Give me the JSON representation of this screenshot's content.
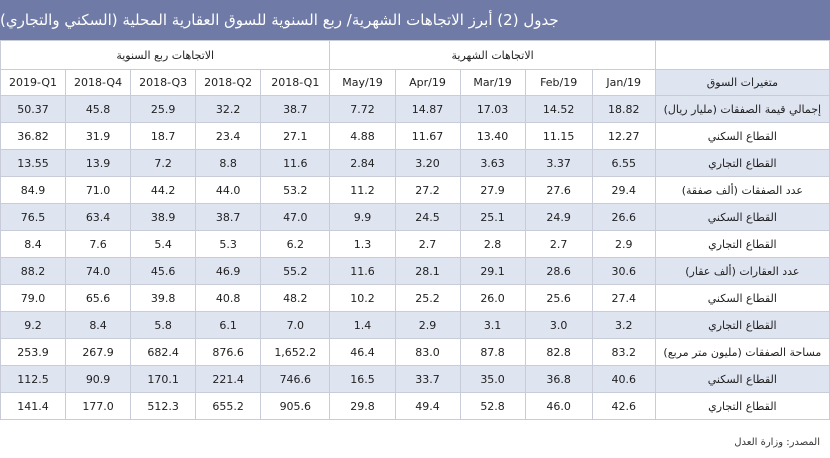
{
  "title": "جدول (2) أبرز الاتجاهات الشهرية/ ربع السنوية للسوق العقارية المحلية (السكني والتجاري)",
  "groups": {
    "quarterly": "الاتجاهات ربع السنوية",
    "monthly": "الاتجاهات الشهرية"
  },
  "headers": {
    "quarters": [
      "2019-Q1",
      "2018-Q4",
      "2018-Q3",
      "2018-Q2",
      "2018-Q1"
    ],
    "months": [
      "May/19",
      "Apr/19",
      "Mar/19",
      "Feb/19",
      "Jan/19"
    ],
    "variable": "متغيرات السوق"
  },
  "rows": [
    {
      "label": "إجمالي قيمة الصفقات (مليار ريال)",
      "quarters": [
        "50.37",
        "45.8",
        "25.9",
        "32.2",
        "38.7"
      ],
      "months": [
        "7.72",
        "14.87",
        "17.03",
        "14.52",
        "18.82"
      ]
    },
    {
      "label": "القطاع السكني",
      "quarters": [
        "36.82",
        "31.9",
        "18.7",
        "23.4",
        "27.1"
      ],
      "months": [
        "4.88",
        "11.67",
        "13.40",
        "11.15",
        "12.27"
      ]
    },
    {
      "label": "القطاع التجاري",
      "quarters": [
        "13.55",
        "13.9",
        "7.2",
        "8.8",
        "11.6"
      ],
      "months": [
        "2.84",
        "3.20",
        "3.63",
        "3.37",
        "6.55"
      ]
    },
    {
      "label": "عدد الصفقات (ألف صفقة)",
      "quarters": [
        "84.9",
        "71.0",
        "44.2",
        "44.0",
        "53.2"
      ],
      "months": [
        "11.2",
        "27.2",
        "27.9",
        "27.6",
        "29.4"
      ]
    },
    {
      "label": "القطاع السكني",
      "quarters": [
        "76.5",
        "63.4",
        "38.9",
        "38.7",
        "47.0"
      ],
      "months": [
        "9.9",
        "24.5",
        "25.1",
        "24.9",
        "26.6"
      ]
    },
    {
      "label": "القطاع التجاري",
      "quarters": [
        "8.4",
        "7.6",
        "5.4",
        "5.3",
        "6.2"
      ],
      "months": [
        "1.3",
        "2.7",
        "2.8",
        "2.7",
        "2.9"
      ]
    },
    {
      "label": "عدد العقارات (ألف عقار)",
      "quarters": [
        "88.2",
        "74.0",
        "45.6",
        "46.9",
        "55.2"
      ],
      "months": [
        "11.6",
        "28.1",
        "29.1",
        "28.6",
        "30.6"
      ]
    },
    {
      "label": "القطاع السكني",
      "quarters": [
        "79.0",
        "65.6",
        "39.8",
        "40.8",
        "48.2"
      ],
      "months": [
        "10.2",
        "25.2",
        "26.0",
        "25.6",
        "27.4"
      ]
    },
    {
      "label": "القطاع التجاري",
      "quarters": [
        "9.2",
        "8.4",
        "5.8",
        "6.1",
        "7.0"
      ],
      "months": [
        "1.4",
        "2.9",
        "3.1",
        "3.0",
        "3.2"
      ]
    },
    {
      "label": "مساحة الصفقات (مليون متر مربع)",
      "quarters": [
        "253.9",
        "267.9",
        "682.4",
        "876.6",
        "1,652.2"
      ],
      "months": [
        "46.4",
        "83.0",
        "87.8",
        "82.8",
        "83.2"
      ]
    },
    {
      "label": "القطاع السكني",
      "quarters": [
        "112.5",
        "90.9",
        "170.1",
        "221.4",
        "746.6"
      ],
      "months": [
        "16.5",
        "33.7",
        "35.0",
        "36.8",
        "40.6"
      ]
    },
    {
      "label": "القطاع التجاري",
      "quarters": [
        "141.4",
        "177.0",
        "512.3",
        "655.2",
        "905.6"
      ],
      "months": [
        "29.8",
        "49.4",
        "52.8",
        "46.0",
        "42.6"
      ]
    }
  ],
  "source": "المصدر: وزارة العدل",
  "colors": {
    "header_bar": "#6f7aa6",
    "shade": "#dfe4f1",
    "border": "#c8ccd8"
  }
}
